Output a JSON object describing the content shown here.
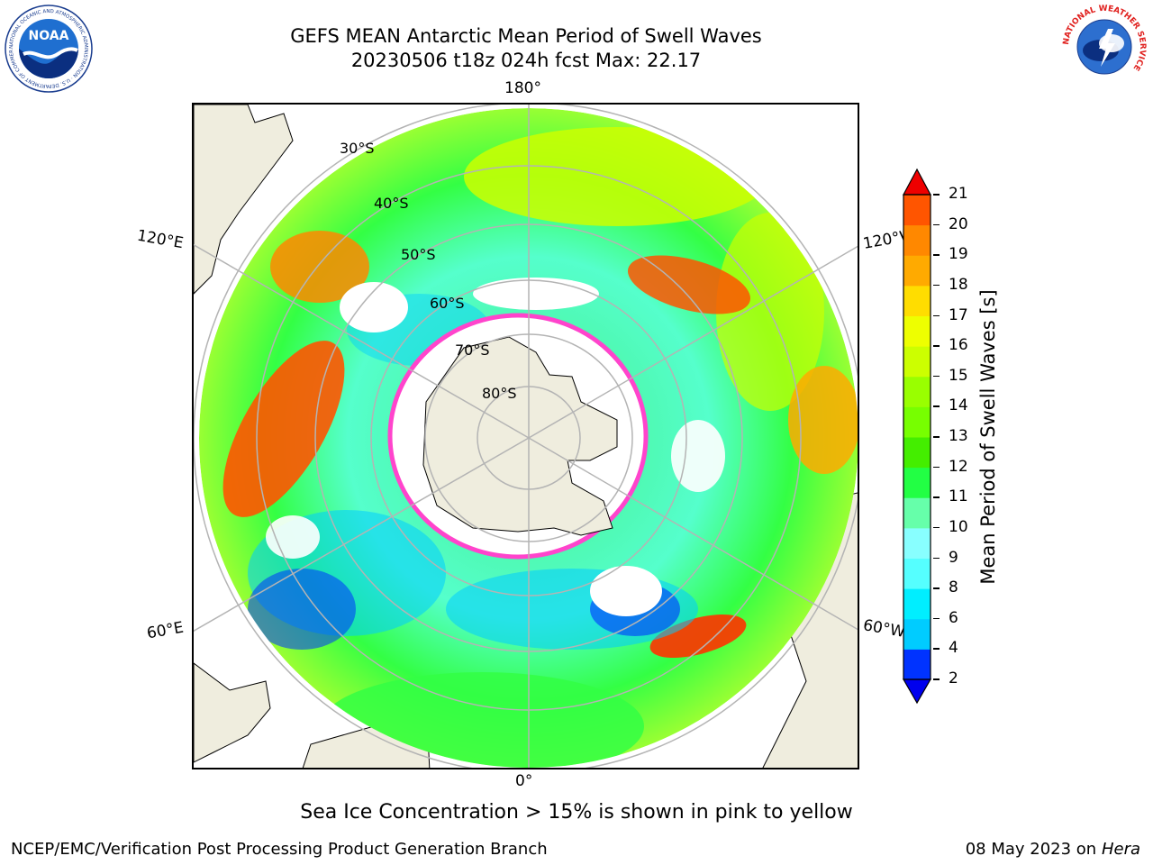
{
  "title": {
    "line1": "GEFS MEAN Antarctic Mean Period of Swell Waves",
    "line2": "20230506 t18z 024h fcst   Max: 22.17"
  },
  "map": {
    "projection": "south polar stereographic",
    "meridian_labels": [
      "180°",
      "120°E",
      "120°W",
      "60°E",
      "60°W",
      "0°"
    ],
    "parallel_labels": [
      "30°S",
      "40°S",
      "50°S",
      "60°S",
      "70°S",
      "80°S"
    ],
    "colors": {
      "land": "#efedde",
      "sea_ice_shelf": "#ffffff",
      "ice_edge": "#ff44cc",
      "graticule": "#b4b4b4"
    }
  },
  "colorbar": {
    "label": "Mean Period of Swell Waves [s]",
    "ticks": [
      "2",
      "4",
      "6",
      "8",
      "9",
      "10",
      "11",
      "12",
      "13",
      "14",
      "15",
      "16",
      "17",
      "18",
      "19",
      "20",
      "21"
    ],
    "colors": [
      "#0033ff",
      "#00ccff",
      "#00eeff",
      "#55ffff",
      "#88ffff",
      "#66ffaa",
      "#22ff44",
      "#44ee00",
      "#77ff00",
      "#99ff00",
      "#ccff00",
      "#eeff00",
      "#ffdd00",
      "#ffaa00",
      "#ff8800",
      "#ff5500",
      "#ff2200",
      "#ee0000"
    ],
    "min_color": "#0000ee",
    "max_color": "#ee0000"
  },
  "footer": {
    "note": "Sea Ice Concentration > 15% is shown in pink to yellow",
    "producer": "NCEP/EMC/Verification Post Processing Product Generation Branch",
    "date": "08 May 2023 on",
    "system": "Hera"
  },
  "logos": {
    "noaa_text": "NOAA",
    "noaa_ring": "NATIONAL OCEANIC AND ATMOSPHERIC ADMINISTRATION · U.S. DEPARTMENT OF COMMERCE",
    "nws_ring": "NATIONAL WEATHER SERVICE"
  }
}
